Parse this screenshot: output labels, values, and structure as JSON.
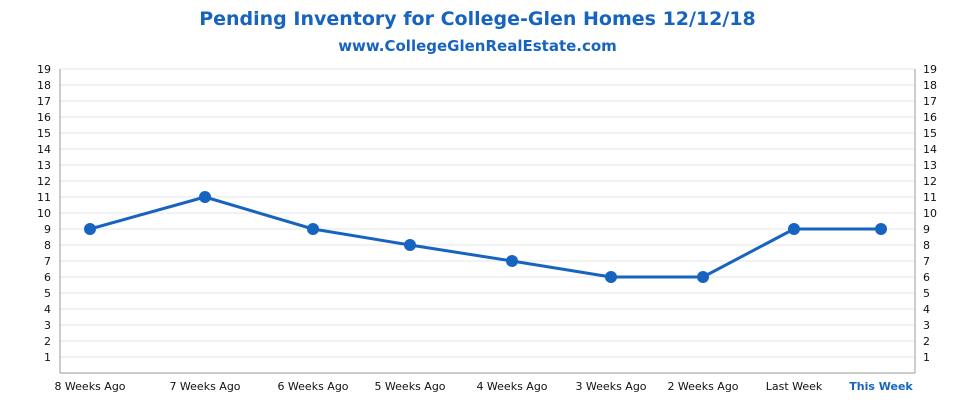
{
  "chart_data": {
    "type": "line",
    "title": "Pending Inventory for College-Glen Homes 12/12/18",
    "subtitle": "www.CollegeGlenRealEstate.com",
    "xlabel": "",
    "ylabel": "",
    "categories": [
      "8 Weeks Ago",
      "7 Weeks Ago",
      "6 Weeks Ago",
      "5 Weeks Ago",
      "4 Weeks Ago",
      "3 Weeks Ago",
      "2 Weeks Ago",
      "Last Week",
      "This Week"
    ],
    "highlight_category": "This Week",
    "series": [
      {
        "values": [
          9,
          11,
          9,
          8,
          7,
          6,
          6,
          9,
          9
        ],
        "color": "#1764c0"
      }
    ],
    "ylim": [
      0,
      19
    ],
    "yticks": [
      1,
      2,
      3,
      4,
      5,
      6,
      7,
      8,
      9,
      10,
      11,
      12,
      13,
      14,
      15,
      16,
      17,
      18,
      19
    ],
    "y_axis_both_sides": true,
    "grid": true,
    "legend": "none",
    "colors": {
      "line": "#1764c0",
      "title": "#1764c0",
      "grid": "#e6e6e6",
      "axis": "#9a9a9a"
    }
  }
}
